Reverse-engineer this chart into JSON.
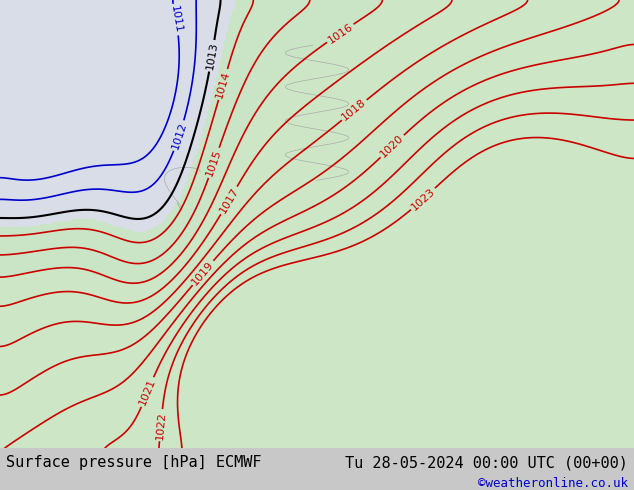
{
  "title_left": "Surface pressure [hPa] ECMWF",
  "title_right": "Tu 28-05-2024 00:00 UTC (00+00)",
  "credit": "©weatheronline.co.uk",
  "title_fontsize": 11,
  "credit_fontsize": 9,
  "bg_color": "#e8f4e8",
  "land_color": "#c8e6c8",
  "sea_color": "#e0e8f0",
  "isobar_color_red": "#cc0000",
  "isobar_color_blue": "#0000cc",
  "isobar_color_black": "#000000",
  "footer_bg": "#d8d8d8",
  "pressure_levels_red": [
    1014,
    1015,
    1016,
    1017,
    1018,
    1019,
    1020,
    1021,
    1022,
    1023
  ],
  "pressure_levels_blue": [
    1011,
    1012
  ],
  "pressure_levels_black": [
    1013
  ]
}
